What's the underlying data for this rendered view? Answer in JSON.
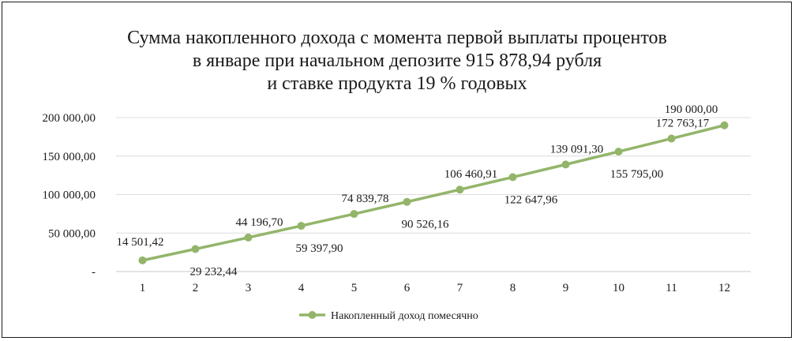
{
  "chart_data": {
    "type": "line",
    "title_lines": [
      "Сумма накопленного дохода с момента первой выплаты процентов",
      "в январе при начальном депозите 915 878,94 рубля",
      "и ставке продукта 19 % годовых"
    ],
    "x": [
      "1",
      "2",
      "3",
      "4",
      "5",
      "6",
      "7",
      "8",
      "9",
      "10",
      "11",
      "12"
    ],
    "series": [
      {
        "name": "Накопленный доход помесячно",
        "color": "#93b56a",
        "values": [
          14501.42,
          29232.44,
          44196.7,
          59397.9,
          74839.78,
          90526.16,
          106460.91,
          122647.96,
          139091.3,
          155795.0,
          172763.17,
          190000.0
        ],
        "data_labels": [
          "14 501,42",
          "29 232,44",
          "44 196,70",
          "59 397,90",
          "74 839,78",
          "90 526,16",
          "106 460,91",
          "122 647,96",
          "139 091,30",
          "155 795,00",
          "172 763,17",
          "190 000,00"
        ]
      }
    ],
    "ylim": [
      0,
      200000
    ],
    "y_ticks": [
      {
        "value": 0,
        "label": "-"
      },
      {
        "value": 50000,
        "label": "50 000,00"
      },
      {
        "value": 100000,
        "label": "100 000,00"
      },
      {
        "value": 150000,
        "label": "150 000,00"
      },
      {
        "value": 200000,
        "label": "200 000,00"
      }
    ],
    "grid": true,
    "legend_position": "bottom"
  }
}
